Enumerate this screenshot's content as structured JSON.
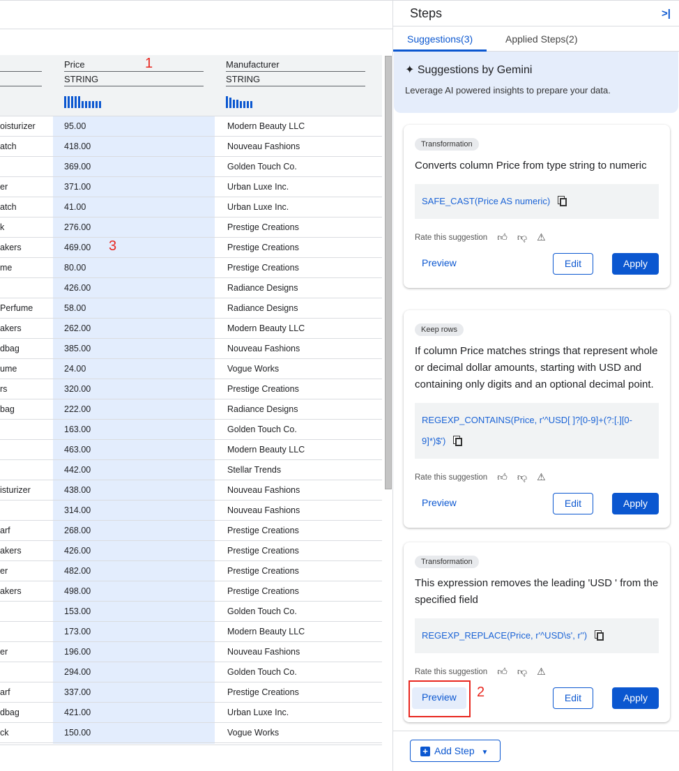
{
  "table": {
    "columns": [
      {
        "name": "",
        "type": ""
      },
      {
        "name": "Price",
        "type": "STRING",
        "bars": [
          17,
          17,
          17,
          17,
          17,
          10,
          10,
          10,
          10,
          10,
          10
        ]
      },
      {
        "name": "Manufacturer",
        "type": "STRING",
        "bars": [
          17,
          15,
          12,
          12,
          10,
          10,
          10,
          10
        ]
      }
    ],
    "rows": [
      [
        "oisturizer",
        "95.00",
        "Modern Beauty LLC"
      ],
      [
        "atch",
        "418.00",
        "Nouveau Fashions"
      ],
      [
        "",
        "369.00",
        "Golden Touch Co."
      ],
      [
        "er",
        "371.00",
        "Urban Luxe Inc."
      ],
      [
        "atch",
        "41.00",
        "Urban Luxe Inc."
      ],
      [
        "k",
        "276.00",
        "Prestige Creations"
      ],
      [
        "akers",
        "469.00",
        "Prestige Creations"
      ],
      [
        "me",
        "80.00",
        "Prestige Creations"
      ],
      [
        "",
        "426.00",
        "Radiance Designs"
      ],
      [
        " Perfume",
        "58.00",
        "Radiance Designs"
      ],
      [
        "akers",
        "262.00",
        "Modern Beauty LLC"
      ],
      [
        "dbag",
        "385.00",
        "Nouveau Fashions"
      ],
      [
        "ume",
        "24.00",
        "Vogue Works"
      ],
      [
        "rs",
        "320.00",
        "Prestige Creations"
      ],
      [
        "bag",
        "222.00",
        "Radiance Designs"
      ],
      [
        "",
        "163.00",
        "Golden Touch Co."
      ],
      [
        "",
        "463.00",
        "Modern Beauty LLC"
      ],
      [
        "",
        "442.00",
        "Stellar Trends"
      ],
      [
        "isturizer",
        "438.00",
        "Nouveau Fashions"
      ],
      [
        "",
        "314.00",
        "Nouveau Fashions"
      ],
      [
        "arf",
        "268.00",
        "Prestige Creations"
      ],
      [
        "akers",
        "426.00",
        "Prestige Creations"
      ],
      [
        "er",
        "482.00",
        "Prestige Creations"
      ],
      [
        "akers",
        "498.00",
        "Prestige Creations"
      ],
      [
        "",
        "153.00",
        "Golden Touch Co."
      ],
      [
        "",
        "173.00",
        "Modern Beauty LLC"
      ],
      [
        "er",
        "196.00",
        "Nouveau Fashions"
      ],
      [
        "",
        "294.00",
        "Golden Touch Co."
      ],
      [
        "arf",
        "337.00",
        "Prestige Creations"
      ],
      [
        "dbag",
        "421.00",
        "Urban Luxe Inc."
      ],
      [
        "ck",
        "150.00",
        "Vogue Works"
      ]
    ]
  },
  "annotations": {
    "one": "1",
    "two": "2",
    "three": "3"
  },
  "panel": {
    "title": "Steps",
    "collapse_icon": "collapse-right-icon",
    "tabs": [
      {
        "label": "Suggestions(3)",
        "active": true
      },
      {
        "label": "Applied Steps(2)",
        "active": false
      }
    ],
    "gemini": {
      "title": "Suggestions by Gemini",
      "subtitle": "Leverage AI powered insights to prepare your data."
    },
    "rate_label": "Rate this suggestion",
    "preview_label": "Preview",
    "edit_label": "Edit",
    "apply_label": "Apply",
    "cards": [
      {
        "chip": "Transformation",
        "desc": "Converts column Price from type string to numeric",
        "code": "SAFE_CAST(Price AS numeric)"
      },
      {
        "chip": "Keep rows",
        "desc": "If column Price matches strings that represent whole or decimal dollar amounts, starting with USD and containing only digits and an optional decimal point.",
        "code": "REGEXP_CONTAINS(Price, r'^USD[ ]?[0-9]+(?:[.][0-9]*)$')"
      },
      {
        "chip": "Transformation",
        "desc": "This expression removes the leading 'USD ' from the specified field",
        "code": "REGEXP_REPLACE(Price, r'^USD\\s', r'')"
      }
    ],
    "add_step_label": "Add Step"
  },
  "colors": {
    "accent": "#0b57d0",
    "price_column_bg": "#e3edfd",
    "annotation": "#e8261e"
  }
}
